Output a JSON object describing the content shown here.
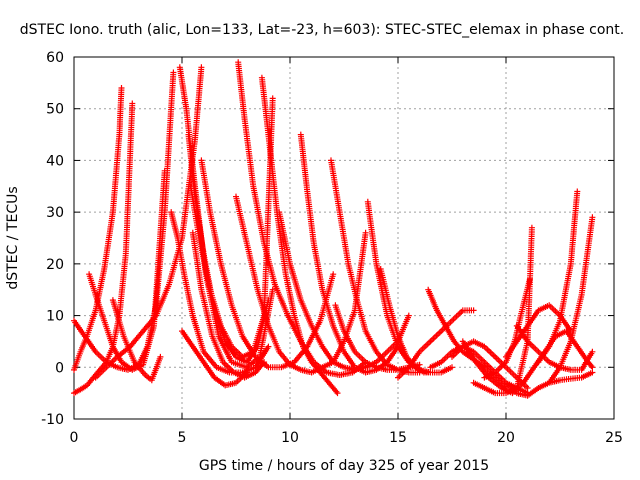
{
  "chart_data": {
    "type": "scatter",
    "title": "dSTEC Iono. truth (alic, Lon=133, Lat=-23, h=603): STEC-STEC_elemax in phase cont.",
    "xlabel": "GPS time / hours of day 325 of year 2015",
    "ylabel": "dSTEC  / TECUs",
    "xlim": [
      0,
      25
    ],
    "ylim": [
      -10,
      60
    ],
    "xticks": [
      0,
      5,
      10,
      15,
      20,
      25
    ],
    "yticks": [
      -10,
      0,
      10,
      20,
      30,
      40,
      50,
      60
    ],
    "xtick_labels": [
      "0",
      "5",
      "10",
      "15",
      "20",
      "25"
    ],
    "ytick_labels": [
      "-10",
      "0",
      "10",
      "20",
      "30",
      "40",
      "50",
      "60"
    ],
    "grid": true,
    "legend": "none",
    "marker": "+",
    "color": "#ff0000",
    "series": [
      {
        "x": [
          0.0,
          0.3,
          0.6,
          1.0,
          1.4,
          1.8,
          2.1,
          2.2
        ],
        "y": [
          -0.5,
          3,
          6,
          11,
          19,
          30,
          45,
          54
        ]
      },
      {
        "x": [
          0.0,
          0.3,
          0.6,
          0.9,
          1.2,
          1.5,
          1.8,
          2.1,
          2.4,
          2.7
        ],
        "y": [
          -5,
          -4.3,
          -3.5,
          -2,
          -0.5,
          1,
          4,
          10,
          22,
          51
        ]
      },
      {
        "x": [
          0.0,
          0.5,
          1.0,
          1.5,
          2.0,
          2.5,
          3.0,
          3.4,
          3.8,
          4.2,
          4.6
        ],
        "y": [
          9,
          6,
          3,
          1,
          0,
          -0.5,
          0.5,
          4,
          12,
          30,
          57
        ]
      },
      {
        "x": [
          0.7,
          1.0,
          1.4,
          1.8,
          2.2,
          2.7,
          3.2,
          3.7,
          4.2
        ],
        "y": [
          18,
          14,
          9,
          4,
          1,
          -0.5,
          0.5,
          8,
          38
        ]
      },
      {
        "x": [
          1.8,
          2.3,
          2.8,
          3.3,
          3.6,
          4.0
        ],
        "y": [
          13,
          6,
          1,
          -1.5,
          -2.5,
          2
        ]
      },
      {
        "x": [
          1.0,
          1.5,
          2.0,
          2.6,
          3.2,
          3.8,
          4.4,
          5.0,
          5.6,
          5.9
        ],
        "y": [
          -2,
          0,
          2,
          4,
          7,
          10,
          16,
          25,
          44,
          58
        ]
      },
      {
        "x": [
          4.5,
          4.8,
          5.1,
          5.5,
          6.0,
          6.6,
          7.2,
          7.8,
          8.4,
          9.0
        ],
        "y": [
          30,
          25,
          18,
          10,
          3,
          0,
          -1,
          -1,
          0,
          4
        ]
      },
      {
        "x": [
          4.9,
          5.2,
          5.6,
          6.1,
          6.7,
          7.3,
          8.0,
          8.6,
          9.2
        ],
        "y": [
          58,
          50,
          35,
          18,
          6,
          1,
          0,
          2,
          15
        ]
      },
      {
        "x": [
          5.3,
          5.6,
          6.0,
          6.5,
          7.0,
          7.5,
          8.0,
          8.5,
          9.0
        ],
        "y": [
          45,
          33,
          22,
          11,
          5,
          2,
          1,
          4,
          13
        ]
      },
      {
        "x": [
          5.4,
          5.8,
          6.3,
          6.8,
          7.3,
          7.8,
          8.3,
          8.8,
          9.2
        ],
        "y": [
          35,
          25,
          15,
          8,
          4,
          2,
          3,
          10,
          52
        ]
      },
      {
        "x": [
          5.5,
          5.9,
          6.4,
          6.9,
          7.4,
          7.9,
          8.4,
          8.8
        ],
        "y": [
          26,
          15,
          6,
          1,
          -1,
          -2,
          -1,
          1
        ]
      },
      {
        "x": [
          5.0,
          5.5,
          6.0,
          6.5,
          7.0,
          7.5,
          8.0
        ],
        "y": [
          7,
          4,
          1,
          -2,
          -3.5,
          -3,
          -1
        ]
      },
      {
        "x": [
          5.9,
          6.3,
          6.8,
          7.3,
          7.8,
          8.4,
          9.0,
          9.6,
          10.2,
          10.8,
          11.4,
          12.0
        ],
        "y": [
          40,
          30,
          20,
          12,
          6,
          2,
          0,
          0,
          1,
          4,
          9,
          18
        ]
      },
      {
        "x": [
          7.6,
          7.9,
          8.3,
          8.8,
          9.3,
          9.9,
          10.5,
          11.1,
          11.7,
          12.3,
          12.9,
          13.5
        ],
        "y": [
          59,
          48,
          35,
          24,
          16,
          10,
          5,
          1,
          -1,
          -1.5,
          -1,
          1
        ]
      },
      {
        "x": [
          7.5,
          8.0,
          8.5,
          9.0,
          9.5,
          10.0,
          10.5,
          11.0,
          11.5,
          12.0,
          12.5,
          13.0,
          13.5
        ],
        "y": [
          33,
          24,
          15,
          8,
          3,
          0.5,
          -0.5,
          -1,
          0,
          1,
          5,
          11,
          26
        ]
      },
      {
        "x": [
          8.7,
          9.0,
          9.4,
          9.8,
          10.2,
          10.6,
          11.0,
          11.4,
          11.8,
          12.2
        ],
        "y": [
          56,
          45,
          30,
          18,
          10,
          4,
          1,
          -1,
          -3,
          -5
        ]
      },
      {
        "x": [
          10.5,
          10.8,
          11.1,
          11.5,
          12.0,
          12.5,
          13.0,
          13.5,
          14.0,
          14.5,
          15.0
        ],
        "y": [
          45,
          34,
          24,
          15,
          8,
          3,
          0,
          -1,
          -0.5,
          1,
          4
        ]
      },
      {
        "x": [
          9.5,
          10.0,
          10.5,
          11.0,
          11.5,
          12.0,
          12.5,
          13.0,
          13.5,
          14.0,
          14.5,
          15.0,
          15.5
        ],
        "y": [
          30,
          20,
          13,
          8,
          4,
          1,
          0,
          -0.5,
          0,
          1,
          3,
          5,
          10
        ]
      },
      {
        "x": [
          11.9,
          12.3,
          12.7,
          13.1,
          13.5,
          14.0,
          14.5,
          15.0,
          15.5,
          16.0
        ],
        "y": [
          40,
          30,
          20,
          13,
          7,
          3,
          0.5,
          -0.5,
          -1,
          -1
        ]
      },
      {
        "x": [
          12.1,
          12.5,
          13.0,
          13.5,
          14.0,
          14.5,
          15.0,
          15.5,
          16.0
        ],
        "y": [
          12,
          7,
          3,
          1,
          0,
          -0.5,
          -0.5,
          0,
          0.5
        ]
      },
      {
        "x": [
          13.6,
          14.0,
          14.5,
          15.0,
          15.5,
          16.0,
          16.5,
          17.0,
          17.5
        ],
        "y": [
          32,
          20,
          10,
          4,
          1,
          -0.5,
          -1,
          -1,
          0
        ]
      },
      {
        "x": [
          14.2,
          14.6,
          15.0,
          15.4,
          15.8,
          16.2,
          16.6
        ],
        "y": [
          19,
          12,
          6,
          2,
          0,
          -1,
          -1
        ]
      },
      {
        "x": [
          15.0,
          15.5,
          16.0,
          16.5,
          17.0,
          17.5,
          18.0,
          18.5
        ],
        "y": [
          -2,
          0,
          3,
          5,
          7,
          9,
          11,
          11
        ]
      },
      {
        "x": [
          16.4,
          16.8,
          17.2,
          17.6,
          18.0,
          18.5,
          19.0,
          19.5,
          20.0
        ],
        "y": [
          15,
          11,
          8,
          5,
          3,
          1.5,
          0,
          -2,
          -4
        ]
      },
      {
        "x": [
          16.5,
          17.0,
          17.5,
          18.0,
          18.5,
          19.0,
          19.5,
          20.0,
          20.5,
          21.0
        ],
        "y": [
          0,
          1,
          3,
          4,
          3,
          1,
          -1,
          -3,
          -4,
          -5
        ]
      },
      {
        "x": [
          17.5,
          18.0,
          18.5,
          19.0,
          19.5,
          20.0,
          20.5,
          21.0
        ],
        "y": [
          2,
          4,
          5,
          4,
          2,
          0,
          -2,
          -4
        ]
      },
      {
        "x": [
          18.5,
          19.0,
          19.5,
          20.0,
          20.5,
          21.0,
          21.2
        ],
        "y": [
          -3,
          -4,
          -5,
          -5,
          -4,
          5,
          27
        ]
      },
      {
        "x": [
          18.0,
          18.6,
          19.2,
          19.8,
          20.3,
          20.8,
          21.3,
          21.8,
          22.3,
          22.8,
          23.3,
          23.8,
          24.0
        ],
        "y": [
          5,
          1,
          -2,
          -4,
          -5,
          -3,
          0,
          3,
          6,
          7,
          4,
          1,
          0
        ]
      },
      {
        "x": [
          19.5,
          20.0,
          20.5,
          21.0,
          21.5,
          22.0,
          22.5,
          23.0,
          23.5,
          24.0
        ],
        "y": [
          -1,
          -3,
          -5,
          -5.5,
          -4,
          -3,
          -2.5,
          -2.2,
          -2,
          -1
        ]
      },
      {
        "x": [
          19.0,
          19.5,
          20.0,
          20.4,
          20.8,
          21.1
        ],
        "y": [
          -2,
          -1,
          1,
          5,
          12,
          17
        ]
      },
      {
        "x": [
          20.5,
          21.0,
          21.5,
          22.0,
          22.5,
          23.0,
          23.5,
          24.0
        ],
        "y": [
          8,
          5,
          3,
          1,
          0,
          -0.5,
          -0.5,
          3
        ]
      },
      {
        "x": [
          20.0,
          20.5,
          21.0,
          21.5,
          22.0,
          22.5,
          23.0
        ],
        "y": [
          2,
          5,
          8,
          11,
          12,
          10,
          7
        ]
      },
      {
        "x": [
          21.5,
          22.0,
          22.5,
          23.0,
          23.3
        ],
        "y": [
          1,
          4,
          9,
          20,
          34
        ]
      },
      {
        "x": [
          22.0,
          22.5,
          23.0,
          23.5,
          24.0
        ],
        "y": [
          -3,
          0,
          5,
          14,
          29
        ]
      }
    ]
  }
}
